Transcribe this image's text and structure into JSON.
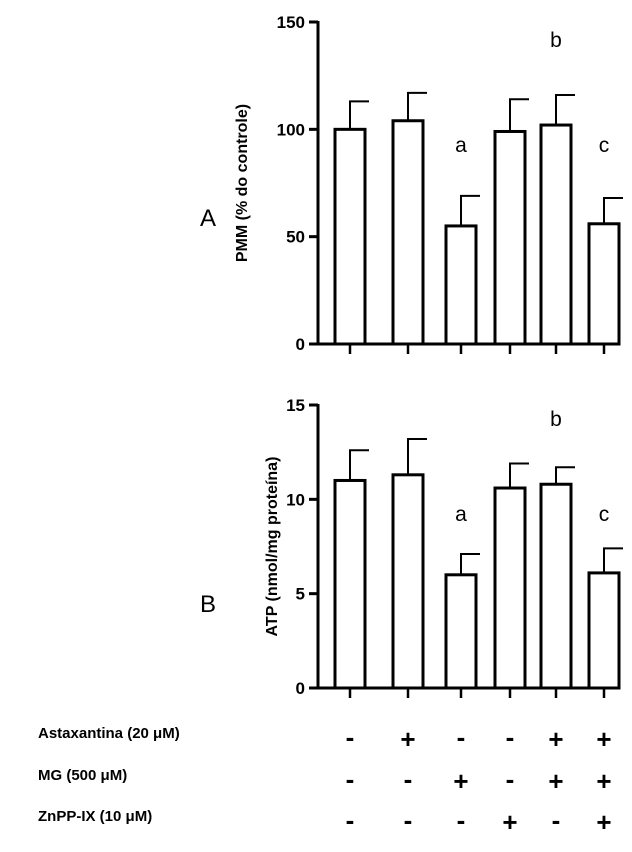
{
  "panel_letters": {
    "a": "A",
    "b": "B"
  },
  "conditions": {
    "rows": [
      {
        "label": "Astaxantina (20 μM)",
        "signs": [
          "-",
          "+",
          "-",
          "-",
          "+",
          "+"
        ]
      },
      {
        "label": "MG (500 μM)",
        "signs": [
          "-",
          "-",
          "+",
          "-",
          "+",
          "+"
        ]
      },
      {
        "label": "ZnPP-IX (10 μM)",
        "signs": [
          "-",
          "-",
          "-",
          "+",
          "-",
          "+"
        ]
      }
    ]
  },
  "chart_data": [
    {
      "type": "bar",
      "panel": "A",
      "ylabel": "PMM (% do controle)",
      "ylim": [
        0,
        150
      ],
      "yticks": [
        0,
        50,
        100,
        150
      ],
      "values": [
        100,
        104,
        55,
        99,
        102,
        56
      ],
      "errors": [
        13,
        13,
        14,
        15,
        14,
        12
      ],
      "annotations": [
        "",
        "",
        "a",
        "",
        "b",
        "c"
      ],
      "grid": false
    },
    {
      "type": "bar",
      "panel": "B",
      "ylabel": "ATP (nmol/mg proteína)",
      "ylim": [
        0,
        15
      ],
      "yticks": [
        0,
        5,
        10,
        15
      ],
      "values": [
        11.0,
        11.3,
        6.0,
        10.6,
        10.8,
        6.1
      ],
      "errors": [
        1.6,
        1.9,
        1.1,
        1.3,
        0.9,
        1.3
      ],
      "annotations": [
        "",
        "",
        "a",
        "",
        "b",
        "c"
      ],
      "grid": false
    }
  ]
}
